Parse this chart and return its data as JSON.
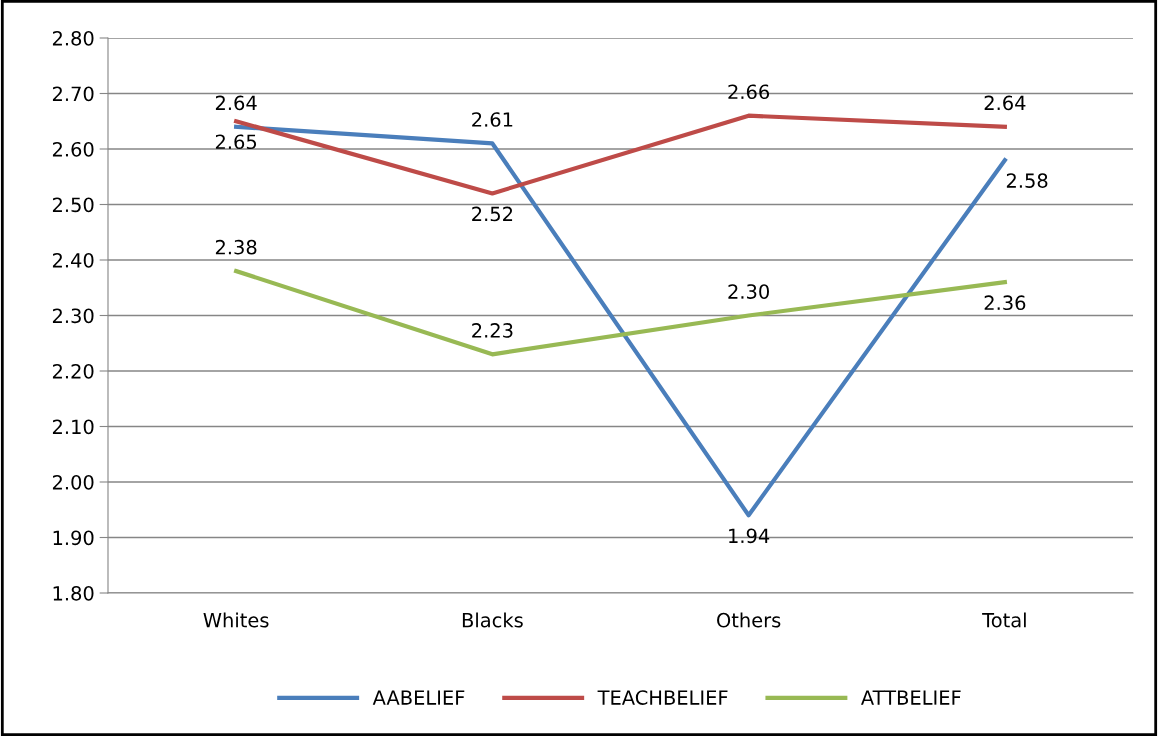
{
  "chart_data": {
    "type": "line",
    "categories": [
      "Whites",
      "Blacks",
      "Others",
      "Total"
    ],
    "series": [
      {
        "name": "AABELIEF",
        "color": "#4a7ebb",
        "values": [
          2.64,
          2.61,
          1.94,
          2.58
        ],
        "value_labels": [
          "2.64",
          "2.61",
          "1.94",
          "2.58"
        ]
      },
      {
        "name": "TEACHBELIEF",
        "color": "#be4b48",
        "values": [
          2.65,
          2.52,
          2.66,
          2.64
        ],
        "value_labels": [
          "2.65",
          "2.52",
          "2.66",
          "2.64"
        ]
      },
      {
        "name": "ATTBELIEF",
        "color": "#98b954",
        "values": [
          2.38,
          2.23,
          2.3,
          2.36
        ],
        "value_labels": [
          "2.38",
          "2.23",
          "2.30",
          "2.36"
        ]
      }
    ],
    "ylim": [
      1.8,
      2.8
    ],
    "yticks": [
      {
        "value": 1.8,
        "label": "1.80"
      },
      {
        "value": 1.9,
        "label": "1.90"
      },
      {
        "value": 2.0,
        "label": "2.00"
      },
      {
        "value": 2.1,
        "label": "2.10"
      },
      {
        "value": 2.2,
        "label": "2.20"
      },
      {
        "value": 2.3,
        "label": "2.30"
      },
      {
        "value": 2.4,
        "label": "2.40"
      },
      {
        "value": 2.5,
        "label": "2.50"
      },
      {
        "value": 2.6,
        "label": "2.60"
      },
      {
        "value": 2.7,
        "label": "2.70"
      },
      {
        "value": 2.8,
        "label": "2.80"
      }
    ],
    "grid": "y",
    "legend": "bottom",
    "marker": "none",
    "line_style": "solid"
  }
}
